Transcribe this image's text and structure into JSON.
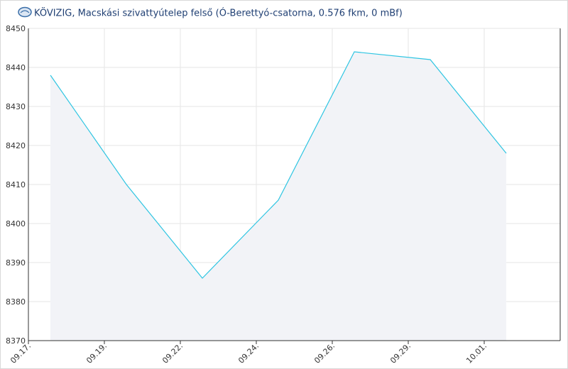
{
  "chart_data": {
    "type": "area",
    "title": "KÖVIZIG, Macskási szivattyútelep felső (Ó-Berettyó-csatorna, 0.576 fkm, 0 mBf)",
    "categories": [
      "09.17.",
      "09.19.",
      "09.22.",
      "09.24.",
      "09.26.",
      "09.29.",
      "10.01."
    ],
    "values": [
      8438,
      8410,
      8386,
      8406,
      8444,
      8442,
      8418
    ],
    "color": "#2ec5e2",
    "area_color": "#f2f3f7",
    "ylim": [
      8370,
      8450
    ],
    "yticks": [
      8370,
      8380,
      8390,
      8400,
      8410,
      8420,
      8430,
      8440,
      8450
    ],
    "grid": true
  }
}
